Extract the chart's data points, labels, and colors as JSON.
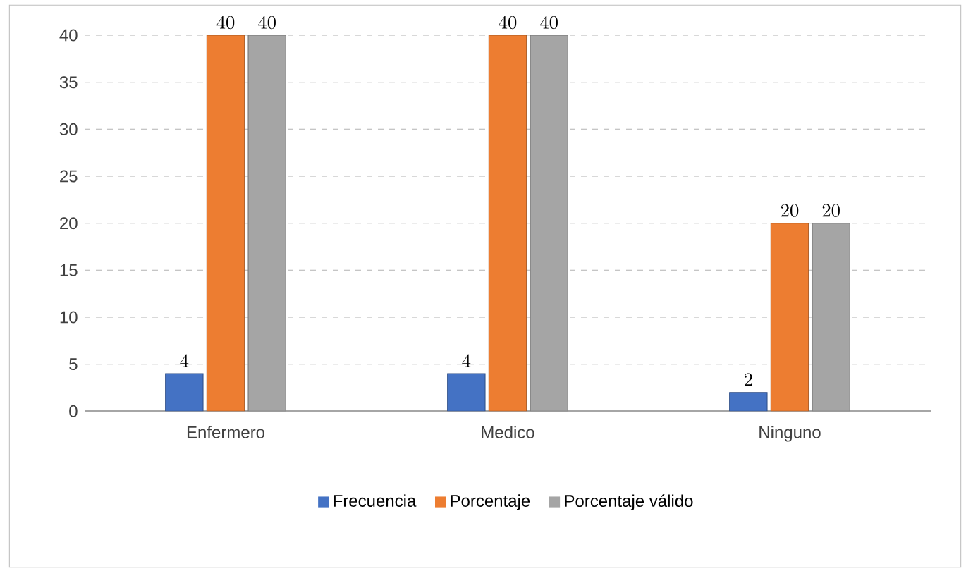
{
  "chart_data": {
    "type": "bar",
    "categories": [
      "Enfermero",
      "Medico",
      "Ninguno"
    ],
    "series": [
      {
        "name": "Frecuencia",
        "color": "#4472c4",
        "values": [
          4,
          4,
          2
        ]
      },
      {
        "name": "Porcentaje",
        "color": "#ed7d31",
        "values": [
          40,
          40,
          20
        ]
      },
      {
        "name": "Porcentaje válido",
        "color": "#a5a5a5",
        "values": [
          40,
          40,
          20
        ]
      }
    ],
    "ylim": [
      0,
      40
    ],
    "yticks": [
      0,
      5,
      10,
      15,
      20,
      25,
      30,
      35,
      40
    ],
    "grid": "y",
    "legend": "bottom",
    "data_labels": true
  }
}
